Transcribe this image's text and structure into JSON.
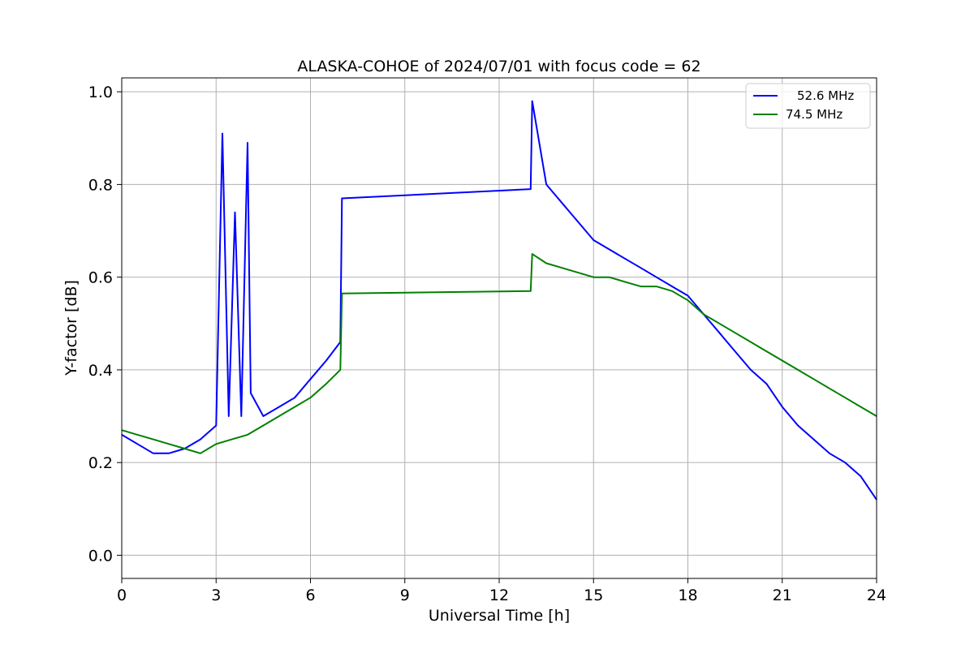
{
  "chart_data": {
    "type": "line",
    "title": "ALASKA-COHOE of 2024/07/01 with focus code = 62",
    "xlabel": "Universal Time [h]",
    "ylabel": "Y-factor [dB]",
    "xlim": [
      0,
      24
    ],
    "ylim": [
      -0.05,
      1.03
    ],
    "xticks": [
      0,
      3,
      6,
      9,
      12,
      15,
      18,
      21,
      24
    ],
    "xtick_labels": [
      "0",
      "3",
      "6",
      "9",
      "12",
      "15",
      "18",
      "21",
      "24"
    ],
    "yticks": [
      0.0,
      0.2,
      0.4,
      0.6,
      0.8,
      1.0
    ],
    "ytick_labels": [
      "0.0",
      "0.2",
      "0.4",
      "0.6",
      "0.8",
      "1.0"
    ],
    "grid": true,
    "legend_position": "top-right",
    "series": [
      {
        "name": "52.6 MHz",
        "color": "#0000ff",
        "x": [
          0.0,
          0.5,
          1.0,
          1.5,
          2.0,
          2.5,
          3.0,
          3.2,
          3.4,
          3.6,
          3.8,
          4.0,
          4.1,
          4.5,
          5.0,
          5.5,
          6.0,
          6.5,
          6.95,
          7.0,
          13.0,
          13.05,
          13.5,
          14.0,
          14.5,
          15.0,
          15.5,
          16.0,
          16.5,
          17.0,
          17.5,
          18.0,
          18.5,
          19.0,
          19.5,
          20.0,
          20.5,
          21.0,
          21.5,
          22.0,
          22.5,
          23.0,
          23.5,
          24.0
        ],
        "y": [
          0.26,
          0.24,
          0.22,
          0.22,
          0.23,
          0.25,
          0.28,
          0.91,
          0.3,
          0.74,
          0.3,
          0.89,
          0.35,
          0.3,
          0.32,
          0.34,
          0.38,
          0.42,
          0.46,
          0.77,
          0.79,
          0.98,
          0.8,
          0.76,
          0.72,
          0.68,
          0.66,
          0.64,
          0.62,
          0.6,
          0.58,
          0.56,
          0.52,
          0.48,
          0.44,
          0.4,
          0.37,
          0.32,
          0.28,
          0.25,
          0.22,
          0.2,
          0.17,
          0.12
        ]
      },
      {
        "name": "74.5 MHz",
        "color": "#008000",
        "x": [
          0.0,
          0.5,
          1.0,
          1.5,
          2.0,
          2.5,
          3.0,
          3.5,
          4.0,
          4.5,
          5.0,
          5.5,
          6.0,
          6.5,
          6.95,
          7.0,
          13.0,
          13.05,
          13.5,
          14.0,
          14.5,
          15.0,
          15.5,
          16.0,
          16.5,
          17.0,
          17.5,
          18.0,
          18.5,
          19.0,
          19.5,
          20.0,
          20.5,
          21.0,
          21.5,
          22.0,
          22.5,
          23.0,
          23.5,
          24.0
        ],
        "y": [
          0.27,
          0.26,
          0.25,
          0.24,
          0.23,
          0.22,
          0.24,
          0.25,
          0.26,
          0.28,
          0.3,
          0.32,
          0.34,
          0.37,
          0.4,
          0.565,
          0.57,
          0.65,
          0.63,
          0.62,
          0.61,
          0.6,
          0.6,
          0.59,
          0.58,
          0.58,
          0.57,
          0.55,
          0.52,
          0.5,
          0.48,
          0.46,
          0.44,
          0.42,
          0.4,
          0.38,
          0.36,
          0.34,
          0.32,
          0.3
        ]
      }
    ]
  }
}
